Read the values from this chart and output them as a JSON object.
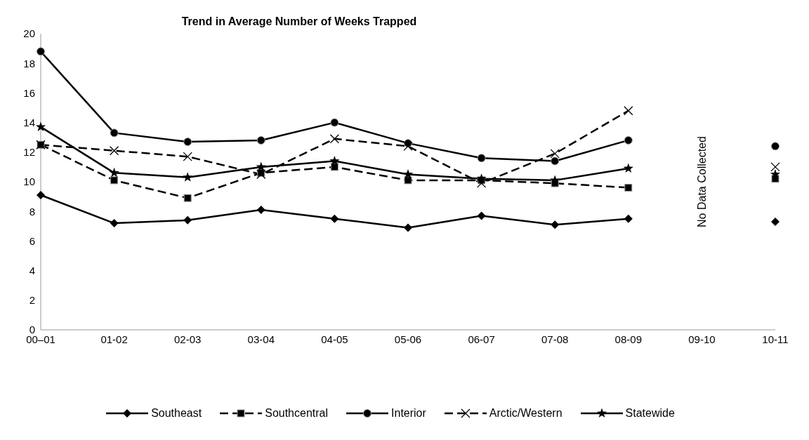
{
  "chart_data": {
    "type": "line",
    "title": "Trend in Average Number of Weeks Trapped",
    "categories": [
      "00–01",
      "01-02",
      "02-03",
      "03-04",
      "04-05",
      "05-06",
      "06-07",
      "07-08",
      "08-09",
      "09-10",
      "10-11"
    ],
    "series": [
      {
        "name": "Southeast",
        "color": "#000000",
        "marker": "diamond",
        "line_style": "solid",
        "values": [
          9.1,
          7.2,
          7.4,
          8.1,
          7.5,
          6.9,
          7.7,
          7.1,
          7.5,
          null,
          7.3
        ]
      },
      {
        "name": "Southcentral",
        "color": "#000000",
        "marker": "square",
        "line_style": "dashed",
        "values": [
          12.5,
          10.1,
          8.9,
          10.6,
          11.0,
          10.1,
          10.1,
          9.9,
          9.6,
          null,
          10.2
        ]
      },
      {
        "name": "Interior",
        "color": "#000000",
        "marker": "circle",
        "line_style": "solid",
        "values": [
          18.8,
          13.3,
          12.7,
          12.8,
          14.0,
          12.6,
          11.6,
          11.4,
          12.8,
          null,
          12.4
        ]
      },
      {
        "name": "Arctic/Western",
        "color": "#000000",
        "marker": "cross",
        "line_style": "dashed",
        "values": [
          12.5,
          12.1,
          11.7,
          10.5,
          12.9,
          12.4,
          9.9,
          11.9,
          14.8,
          null,
          11.0
        ]
      },
      {
        "name": "Statewide",
        "color": "#000000",
        "marker": "star",
        "line_style": "solid",
        "values": [
          13.7,
          10.6,
          10.3,
          11.0,
          11.4,
          10.5,
          10.2,
          10.1,
          10.9,
          null,
          10.5
        ]
      }
    ],
    "ylim": [
      0,
      20
    ],
    "yticks": [
      0,
      2,
      4,
      6,
      8,
      10,
      12,
      14,
      16,
      18,
      20
    ],
    "grid": false,
    "legend": "bottom",
    "annotations": [
      "No Data Collected"
    ]
  }
}
